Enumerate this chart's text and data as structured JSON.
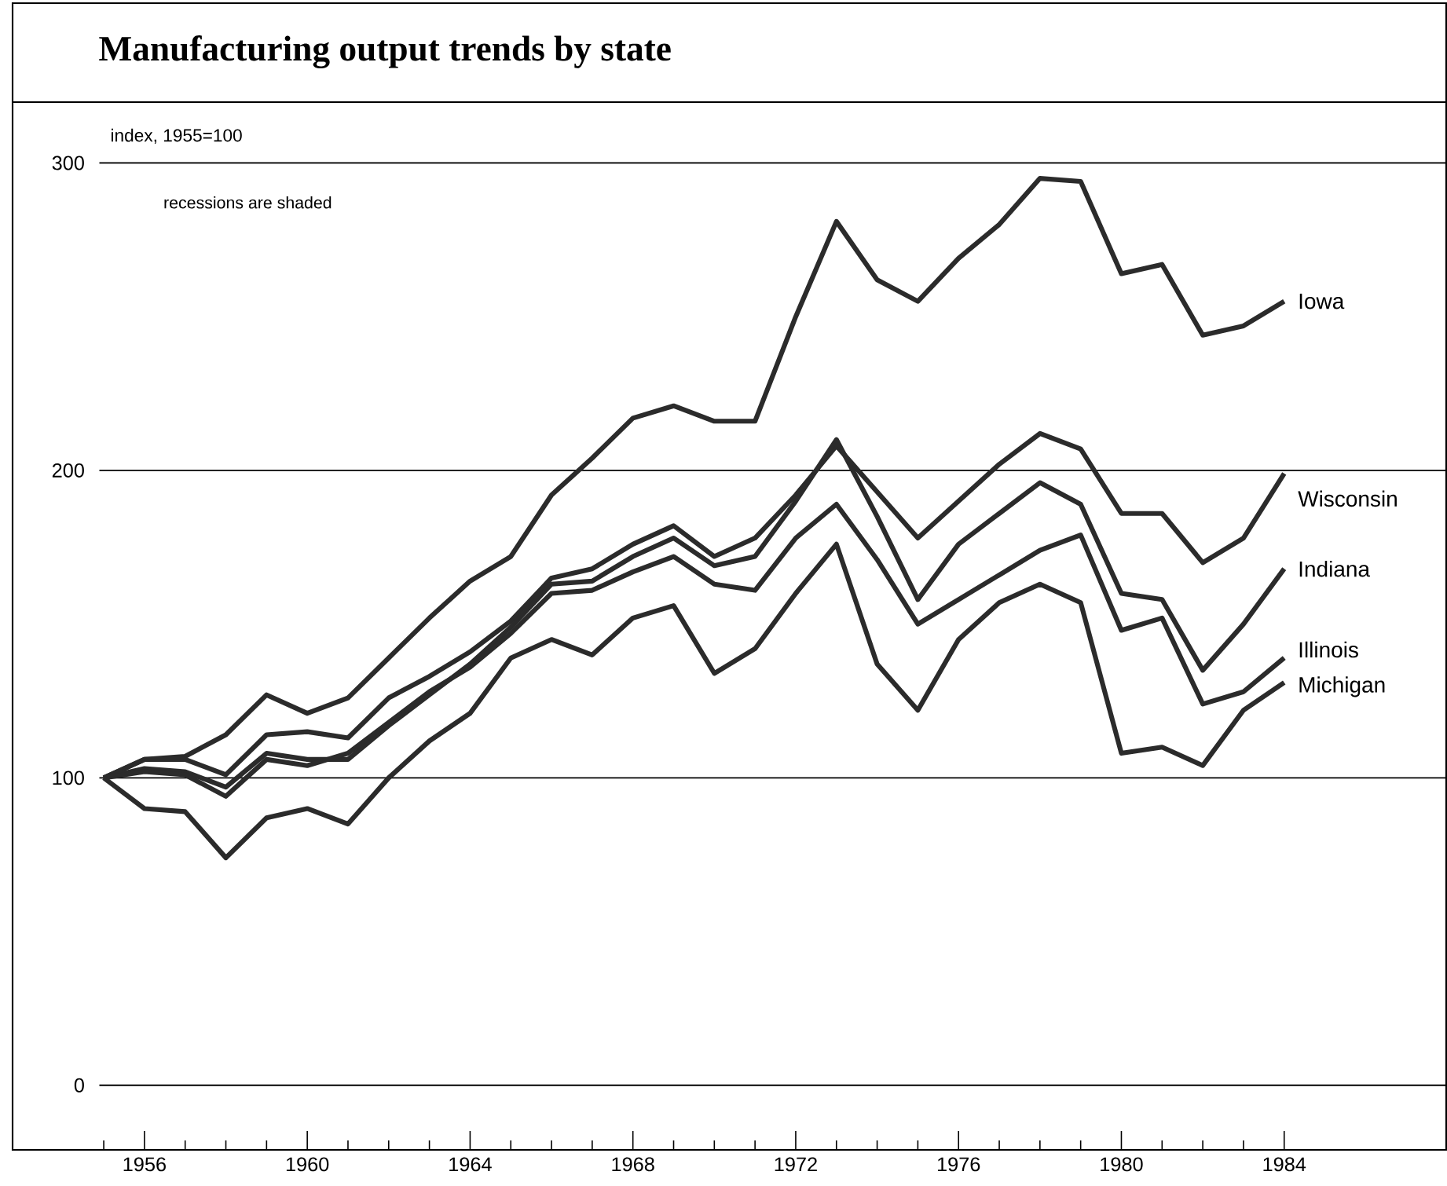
{
  "chart_data": {
    "type": "line",
    "title": "Manufacturing output trends by state",
    "ylabel": "index, 1955=100",
    "annotations": [
      "recessions are shaded"
    ],
    "x": [
      1955,
      1956,
      1957,
      1958,
      1959,
      1960,
      1961,
      1962,
      1963,
      1964,
      1965,
      1966,
      1967,
      1968,
      1969,
      1970,
      1971,
      1972,
      1973,
      1974,
      1975,
      1976,
      1977,
      1978,
      1979,
      1980,
      1981,
      1982,
      1983,
      1984
    ],
    "series": [
      {
        "name": "Iowa",
        "color": "#2b2b2b",
        "values": [
          100,
          106,
          107,
          114,
          127,
          121,
          126,
          139,
          152,
          164,
          172,
          192,
          204,
          217,
          221,
          216,
          216,
          250,
          281,
          262,
          255,
          269,
          280,
          295,
          294,
          264,
          267,
          244,
          247,
          255
        ]
      },
      {
        "name": "Wisconsin",
        "color": "#2b2b2b",
        "values": [
          100,
          106,
          106,
          101,
          114,
          115,
          113,
          126,
          133,
          141,
          151,
          165,
          168,
          176,
          182,
          172,
          178,
          192,
          208,
          193,
          178,
          190,
          202,
          212,
          207,
          186,
          186,
          170,
          178,
          199
        ]
      },
      {
        "name": "Indiana",
        "color": "#2b2b2b",
        "values": [
          100,
          103,
          102,
          97,
          108,
          106,
          106,
          117,
          127,
          137,
          149,
          163,
          164,
          172,
          178,
          169,
          172,
          190,
          210,
          185,
          158,
          176,
          186,
          196,
          189,
          160,
          158,
          135,
          150,
          168
        ]
      },
      {
        "name": "Illinois",
        "color": "#2b2b2b",
        "values": [
          100,
          102,
          101,
          94,
          106,
          104,
          108,
          118,
          128,
          136,
          147,
          160,
          161,
          167,
          172,
          163,
          161,
          178,
          189,
          171,
          150,
          158,
          166,
          174,
          179,
          148,
          152,
          124,
          128,
          139
        ]
      },
      {
        "name": "Michigan",
        "color": "#2b2b2b",
        "values": [
          100,
          90,
          89,
          74,
          87,
          90,
          85,
          100,
          112,
          121,
          139,
          145,
          140,
          152,
          156,
          134,
          142,
          160,
          176,
          137,
          122,
          145,
          157,
          163,
          157,
          108,
          110,
          104,
          122,
          131
        ]
      }
    ],
    "xlim": [
      1952.76,
      1988.0
    ],
    "xticks": [
      {
        "value": 1955,
        "label": null
      },
      1956,
      {
        "value": 1957,
        "label": null
      },
      {
        "value": 1958,
        "label": null
      },
      {
        "value": 1959,
        "label": null
      },
      1960,
      {
        "value": 1961,
        "label": null
      },
      {
        "value": 1962,
        "label": null
      },
      {
        "value": 1963,
        "label": null
      },
      1964,
      {
        "value": 1965,
        "label": null
      },
      {
        "value": 1966,
        "label": null
      },
      {
        "value": 1967,
        "label": null
      },
      1968,
      {
        "value": 1969,
        "label": null
      },
      {
        "value": 1970,
        "label": null
      },
      {
        "value": 1971,
        "label": null
      },
      1972,
      {
        "value": 1973,
        "label": null
      },
      {
        "value": 1974,
        "label": null
      },
      {
        "value": 1975,
        "label": null
      },
      1976,
      {
        "value": 1977,
        "label": null
      },
      {
        "value": 1978,
        "label": null
      },
      {
        "value": 1979,
        "label": null
      },
      1980,
      {
        "value": 1981,
        "label": null
      },
      {
        "value": 1982,
        "label": null
      },
      {
        "value": 1983,
        "label": null
      },
      1984
    ],
    "ylim": [
      -21,
      352
    ],
    "yticks": [
      0,
      100,
      200,
      300
    ],
    "grid": "y",
    "marker": "none",
    "line_style": "solid"
  }
}
